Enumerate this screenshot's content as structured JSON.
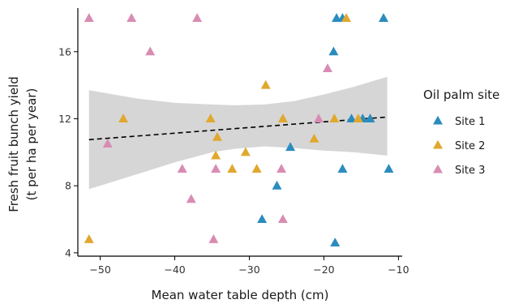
{
  "chart_data": {
    "type": "scatter",
    "xlabel": "Mean water table depth (cm)",
    "ylabel_lines": [
      "Fresh fruit bunch yield",
      "(t per ha per year)"
    ],
    "xlim": [
      -53,
      -9.5
    ],
    "ylim": [
      3.8,
      18.6
    ],
    "xticks": [
      -50,
      -40,
      -30,
      -20,
      -10
    ],
    "xtick_labels": [
      "−50",
      "−40",
      "−30",
      "−20",
      "−10"
    ],
    "yticks": [
      4,
      8,
      12,
      16
    ],
    "ytick_labels": [
      "4",
      "8",
      "12",
      "16"
    ],
    "grid": false,
    "legend": {
      "title": "Oil palm site",
      "placement": "right",
      "entries": [
        "Site 1",
        "Site 2",
        "Site 3"
      ]
    },
    "colors": {
      "site1": "#2b8cbe",
      "site2": "#e0a82e",
      "site3": "#d98cb3",
      "ribbon": "#d6d6d6",
      "trend": "#000000"
    },
    "trend": {
      "x": [
        -51.5,
        -11.5
      ],
      "y": [
        10.75,
        12.1
      ],
      "ci_upper": [
        [
          -51.5,
          13.7
        ],
        [
          -45,
          13.2
        ],
        [
          -40,
          12.95
        ],
        [
          -35,
          12.85
        ],
        [
          -32,
          12.8
        ],
        [
          -28,
          12.85
        ],
        [
          -24,
          13.05
        ],
        [
          -20,
          13.45
        ],
        [
          -16,
          13.9
        ],
        [
          -11.5,
          14.5
        ]
      ],
      "ci_lower": [
        [
          -51.5,
          7.8
        ],
        [
          -45,
          8.7
        ],
        [
          -40,
          9.4
        ],
        [
          -35,
          10.0
        ],
        [
          -32,
          10.2
        ],
        [
          -28,
          10.35
        ],
        [
          -24,
          10.25
        ],
        [
          -20,
          10.1
        ],
        [
          -16,
          10.0
        ],
        [
          -11.5,
          9.8
        ]
      ]
    },
    "series": [
      {
        "name": "Site 1",
        "points": [
          [
            -18.3,
            18
          ],
          [
            -17.5,
            18
          ],
          [
            -12,
            18
          ],
          [
            -18.7,
            16
          ],
          [
            -16.3,
            12
          ],
          [
            -14.8,
            12
          ],
          [
            -13.8,
            12
          ],
          [
            -24.5,
            10.3
          ],
          [
            -17.5,
            9
          ],
          [
            -11.3,
            9
          ],
          [
            -26.3,
            8
          ],
          [
            -28.3,
            6
          ],
          [
            -18.5,
            4.6
          ]
        ]
      },
      {
        "name": "Site 2",
        "points": [
          [
            -17,
            18
          ],
          [
            -27.8,
            14
          ],
          [
            -46.9,
            12
          ],
          [
            -35.2,
            12
          ],
          [
            -25.5,
            12
          ],
          [
            -18.6,
            12
          ],
          [
            -15.4,
            12
          ],
          [
            -34.3,
            10.9
          ],
          [
            -21.3,
            10.8
          ],
          [
            -30.5,
            10
          ],
          [
            -34.5,
            9.8
          ],
          [
            -32.3,
            9
          ],
          [
            -29,
            9
          ],
          [
            -51.5,
            4.8
          ]
        ]
      },
      {
        "name": "Site 3",
        "points": [
          [
            -51.5,
            18
          ],
          [
            -45.8,
            18
          ],
          [
            -37,
            18
          ],
          [
            -43.3,
            16
          ],
          [
            -19.5,
            15
          ],
          [
            -20.7,
            12
          ],
          [
            -49,
            10.5
          ],
          [
            -39,
            9
          ],
          [
            -34.5,
            9
          ],
          [
            -25.7,
            9
          ],
          [
            -37.8,
            7.2
          ],
          [
            -25.5,
            6
          ],
          [
            -34.8,
            4.8
          ]
        ]
      }
    ]
  }
}
